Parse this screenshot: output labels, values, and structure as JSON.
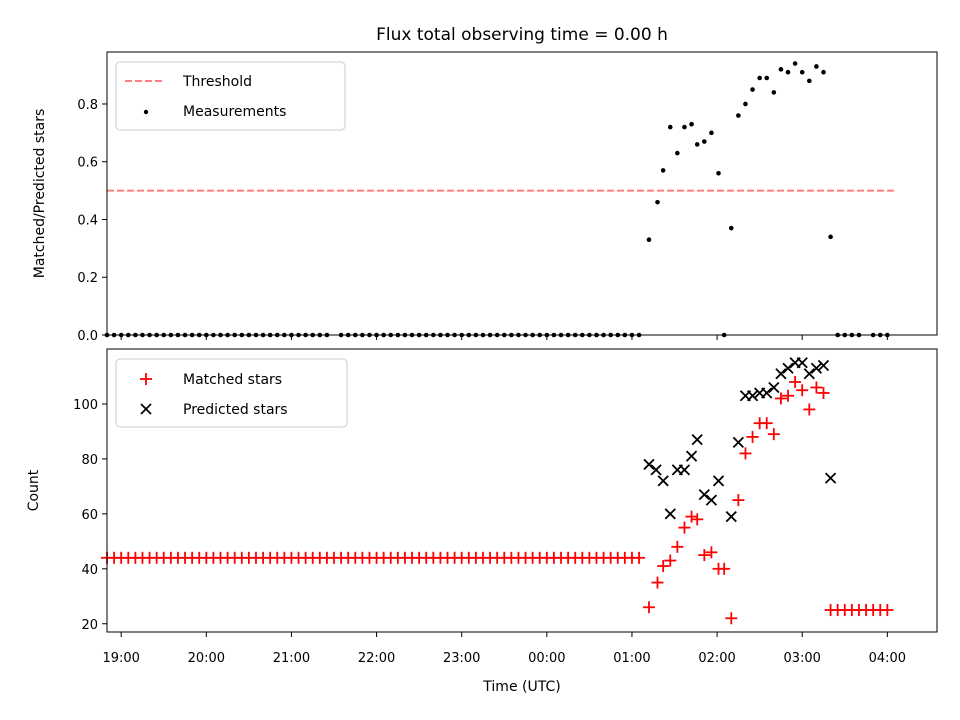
{
  "chart_data": [
    {
      "type": "scatter",
      "title": "Flux total observing time = 0.00 h",
      "ylabel": "Matched/Predicted stars",
      "xlabel": "",
      "xlim": [
        "18:50",
        "04:35"
      ],
      "ylim": [
        0,
        0.98
      ],
      "yticks": [
        0.0,
        0.2,
        0.4,
        0.6,
        0.8
      ],
      "ytick_labels": [
        "0.0",
        "0.2",
        "0.4",
        "0.6",
        "0.8"
      ],
      "grid": false,
      "legend_position": "top-left",
      "series": [
        {
          "name": "Threshold",
          "kind": "dashed-line",
          "color": "#ff7f7f",
          "points": [
            [
              "18:50",
              0.5
            ],
            [
              "04:05",
              0.5
            ]
          ]
        },
        {
          "name": "Measurements",
          "kind": "dots",
          "color": "#000000",
          "points": [
            [
              "18:50",
              0
            ],
            [
              "18:55",
              0
            ],
            [
              "19:00",
              0
            ],
            [
              "19:05",
              0
            ],
            [
              "19:10",
              0
            ],
            [
              "19:15",
              0
            ],
            [
              "19:20",
              0
            ],
            [
              "19:25",
              0
            ],
            [
              "19:30",
              0
            ],
            [
              "19:35",
              0
            ],
            [
              "19:40",
              0
            ],
            [
              "19:45",
              0
            ],
            [
              "19:50",
              0
            ],
            [
              "19:55",
              0
            ],
            [
              "20:00",
              0
            ],
            [
              "20:05",
              0
            ],
            [
              "20:10",
              0
            ],
            [
              "20:15",
              0
            ],
            [
              "20:20",
              0
            ],
            [
              "20:25",
              0
            ],
            [
              "20:30",
              0
            ],
            [
              "20:35",
              0
            ],
            [
              "20:40",
              0
            ],
            [
              "20:45",
              0
            ],
            [
              "20:50",
              0
            ],
            [
              "20:55",
              0
            ],
            [
              "21:00",
              0
            ],
            [
              "21:05",
              0
            ],
            [
              "21:10",
              0
            ],
            [
              "21:15",
              0
            ],
            [
              "21:20",
              0
            ],
            [
              "21:25",
              0
            ],
            [
              "21:35",
              0
            ],
            [
              "21:40",
              0
            ],
            [
              "21:45",
              0
            ],
            [
              "21:50",
              0
            ],
            [
              "21:55",
              0
            ],
            [
              "22:00",
              0
            ],
            [
              "22:05",
              0
            ],
            [
              "22:10",
              0
            ],
            [
              "22:15",
              0
            ],
            [
              "22:20",
              0
            ],
            [
              "22:25",
              0
            ],
            [
              "22:30",
              0
            ],
            [
              "22:35",
              0
            ],
            [
              "22:40",
              0
            ],
            [
              "22:45",
              0
            ],
            [
              "22:50",
              0
            ],
            [
              "22:55",
              0
            ],
            [
              "23:00",
              0
            ],
            [
              "23:05",
              0
            ],
            [
              "23:10",
              0
            ],
            [
              "23:15",
              0
            ],
            [
              "23:20",
              0
            ],
            [
              "23:25",
              0
            ],
            [
              "23:30",
              0
            ],
            [
              "23:35",
              0
            ],
            [
              "23:40",
              0
            ],
            [
              "23:45",
              0
            ],
            [
              "23:50",
              0
            ],
            [
              "23:55",
              0
            ],
            [
              "00:00",
              0
            ],
            [
              "00:05",
              0
            ],
            [
              "00:10",
              0
            ],
            [
              "00:15",
              0
            ],
            [
              "00:20",
              0
            ],
            [
              "00:25",
              0
            ],
            [
              "00:30",
              0
            ],
            [
              "00:35",
              0
            ],
            [
              "00:40",
              0
            ],
            [
              "00:45",
              0
            ],
            [
              "00:50",
              0
            ],
            [
              "00:55",
              0
            ],
            [
              "01:00",
              0
            ],
            [
              "01:05",
              0
            ],
            [
              "01:12",
              0.33
            ],
            [
              "01:18",
              0.46
            ],
            [
              "01:22",
              0.57
            ],
            [
              "01:27",
              0.72
            ],
            [
              "01:32",
              0.63
            ],
            [
              "01:37",
              0.72
            ],
            [
              "01:42",
              0.73
            ],
            [
              "01:46",
              0.66
            ],
            [
              "01:51",
              0.67
            ],
            [
              "01:56",
              0.7
            ],
            [
              "02:01",
              0.56
            ],
            [
              "02:05",
              0
            ],
            [
              "02:10",
              0.37
            ],
            [
              "02:15",
              0.76
            ],
            [
              "02:20",
              0.8
            ],
            [
              "02:25",
              0.85
            ],
            [
              "02:30",
              0.89
            ],
            [
              "02:35",
              0.89
            ],
            [
              "02:40",
              0.84
            ],
            [
              "02:45",
              0.92
            ],
            [
              "02:50",
              0.91
            ],
            [
              "02:55",
              0.94
            ],
            [
              "03:00",
              0.91
            ],
            [
              "03:05",
              0.88
            ],
            [
              "03:10",
              0.93
            ],
            [
              "03:15",
              0.91
            ],
            [
              "03:20",
              0.34
            ],
            [
              "03:25",
              0
            ],
            [
              "03:30",
              0
            ],
            [
              "03:35",
              0
            ],
            [
              "03:40",
              0
            ],
            [
              "03:50",
              0
            ],
            [
              "03:55",
              0
            ],
            [
              "04:00",
              0
            ]
          ]
        }
      ]
    },
    {
      "type": "scatter",
      "title": "",
      "ylabel": "Count",
      "xlabel": "Time (UTC)",
      "xlim": [
        "18:50",
        "04:35"
      ],
      "ylim": [
        17,
        120
      ],
      "yticks": [
        20,
        40,
        60,
        80,
        100
      ],
      "ytick_labels": [
        "20",
        "40",
        "60",
        "80",
        "100"
      ],
      "xticks": [
        "19:00",
        "20:00",
        "21:00",
        "22:00",
        "23:00",
        "00:00",
        "01:00",
        "02:00",
        "03:00",
        "04:00"
      ],
      "grid": false,
      "legend_position": "top-left",
      "series": [
        {
          "name": "Matched stars",
          "kind": "plus",
          "color": "#ff0000",
          "points": [
            [
              "18:50",
              44
            ],
            [
              "18:55",
              44
            ],
            [
              "19:00",
              44
            ],
            [
              "19:05",
              44
            ],
            [
              "19:10",
              44
            ],
            [
              "19:15",
              44
            ],
            [
              "19:20",
              44
            ],
            [
              "19:25",
              44
            ],
            [
              "19:30",
              44
            ],
            [
              "19:35",
              44
            ],
            [
              "19:40",
              44
            ],
            [
              "19:45",
              44
            ],
            [
              "19:50",
              44
            ],
            [
              "19:55",
              44
            ],
            [
              "20:00",
              44
            ],
            [
              "20:05",
              44
            ],
            [
              "20:10",
              44
            ],
            [
              "20:15",
              44
            ],
            [
              "20:20",
              44
            ],
            [
              "20:25",
              44
            ],
            [
              "20:30",
              44
            ],
            [
              "20:35",
              44
            ],
            [
              "20:40",
              44
            ],
            [
              "20:45",
              44
            ],
            [
              "20:50",
              44
            ],
            [
              "20:55",
              44
            ],
            [
              "21:00",
              44
            ],
            [
              "21:05",
              44
            ],
            [
              "21:10",
              44
            ],
            [
              "21:15",
              44
            ],
            [
              "21:20",
              44
            ],
            [
              "21:25",
              44
            ],
            [
              "21:30",
              44
            ],
            [
              "21:35",
              44
            ],
            [
              "21:40",
              44
            ],
            [
              "21:45",
              44
            ],
            [
              "21:50",
              44
            ],
            [
              "21:55",
              44
            ],
            [
              "22:00",
              44
            ],
            [
              "22:05",
              44
            ],
            [
              "22:10",
              44
            ],
            [
              "22:15",
              44
            ],
            [
              "22:20",
              44
            ],
            [
              "22:25",
              44
            ],
            [
              "22:30",
              44
            ],
            [
              "22:35",
              44
            ],
            [
              "22:40",
              44
            ],
            [
              "22:45",
              44
            ],
            [
              "22:50",
              44
            ],
            [
              "22:55",
              44
            ],
            [
              "23:00",
              44
            ],
            [
              "23:05",
              44
            ],
            [
              "23:10",
              44
            ],
            [
              "23:15",
              44
            ],
            [
              "23:20",
              44
            ],
            [
              "23:25",
              44
            ],
            [
              "23:30",
              44
            ],
            [
              "23:35",
              44
            ],
            [
              "23:40",
              44
            ],
            [
              "23:45",
              44
            ],
            [
              "23:50",
              44
            ],
            [
              "23:55",
              44
            ],
            [
              "00:00",
              44
            ],
            [
              "00:05",
              44
            ],
            [
              "00:10",
              44
            ],
            [
              "00:15",
              44
            ],
            [
              "00:20",
              44
            ],
            [
              "00:25",
              44
            ],
            [
              "00:30",
              44
            ],
            [
              "00:35",
              44
            ],
            [
              "00:40",
              44
            ],
            [
              "00:45",
              44
            ],
            [
              "00:50",
              44
            ],
            [
              "00:55",
              44
            ],
            [
              "01:00",
              44
            ],
            [
              "01:05",
              44
            ],
            [
              "01:12",
              26
            ],
            [
              "01:18",
              35
            ],
            [
              "01:22",
              41
            ],
            [
              "01:27",
              43
            ],
            [
              "01:32",
              48
            ],
            [
              "01:37",
              55
            ],
            [
              "01:42",
              59
            ],
            [
              "01:46",
              58
            ],
            [
              "01:51",
              45
            ],
            [
              "01:56",
              46
            ],
            [
              "02:01",
              40
            ],
            [
              "02:05",
              40
            ],
            [
              "02:10",
              22
            ],
            [
              "02:15",
              65
            ],
            [
              "02:20",
              82
            ],
            [
              "02:25",
              88
            ],
            [
              "02:30",
              93
            ],
            [
              "02:35",
              93
            ],
            [
              "02:40",
              89
            ],
            [
              "02:45",
              102
            ],
            [
              "02:50",
              103
            ],
            [
              "02:55",
              108
            ],
            [
              "03:00",
              105
            ],
            [
              "03:05",
              98
            ],
            [
              "03:10",
              106
            ],
            [
              "03:15",
              104
            ],
            [
              "03:20",
              25
            ],
            [
              "03:25",
              25
            ],
            [
              "03:30",
              25
            ],
            [
              "03:35",
              25
            ],
            [
              "03:40",
              25
            ],
            [
              "03:45",
              25
            ],
            [
              "03:50",
              25
            ],
            [
              "03:55",
              25
            ],
            [
              "04:00",
              25
            ]
          ]
        },
        {
          "name": "Predicted stars",
          "kind": "cross",
          "color": "#000000",
          "points": [
            [
              "01:12",
              78
            ],
            [
              "01:17",
              76
            ],
            [
              "01:22",
              72
            ],
            [
              "01:27",
              60
            ],
            [
              "01:32",
              76
            ],
            [
              "01:37",
              76
            ],
            [
              "01:42",
              81
            ],
            [
              "01:46",
              87
            ],
            [
              "01:51",
              67
            ],
            [
              "01:56",
              65
            ],
            [
              "02:01",
              72
            ],
            [
              "02:10",
              59
            ],
            [
              "02:15",
              86
            ],
            [
              "02:20",
              103
            ],
            [
              "02:25",
              103
            ],
            [
              "02:30",
              104
            ],
            [
              "02:35",
              104
            ],
            [
              "02:40",
              106
            ],
            [
              "02:45",
              111
            ],
            [
              "02:50",
              113
            ],
            [
              "02:55",
              115
            ],
            [
              "03:00",
              115
            ],
            [
              "03:05",
              111
            ],
            [
              "03:10",
              113
            ],
            [
              "03:15",
              114
            ],
            [
              "03:20",
              73
            ]
          ]
        }
      ]
    }
  ]
}
